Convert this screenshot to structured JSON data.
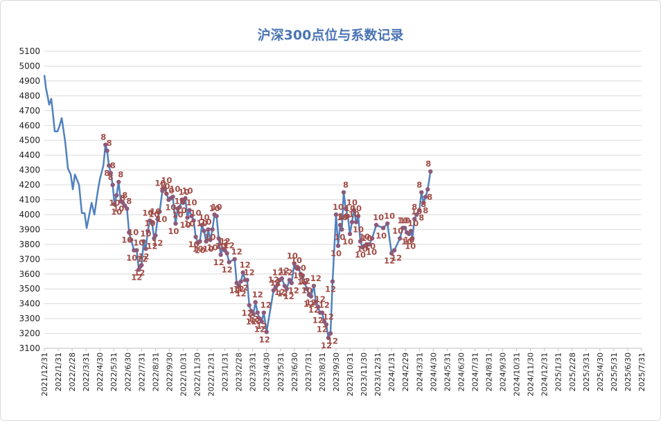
{
  "chart_data": {
    "type": "line",
    "title": "沪深300点位与系数记录",
    "xlabel": "",
    "ylabel": "",
    "ylim": [
      3100,
      5100
    ],
    "y_ticks": [
      3100,
      3200,
      3300,
      3400,
      3500,
      3600,
      3700,
      3800,
      3900,
      4000,
      4100,
      4200,
      4300,
      4400,
      4500,
      4600,
      4700,
      4800,
      4900,
      5000,
      5100
    ],
    "x_ticks": [
      "2021/12/31",
      "2022/1/31",
      "2022/2/28",
      "2022/3/31",
      "2022/4/30",
      "2022/5/31",
      "2022/6/30",
      "2022/7/31",
      "2022/8/31",
      "2022/9/30",
      "2022/10/31",
      "2022/11/30",
      "2022/12/31",
      "2023/1/31",
      "2023/2/28",
      "2023/3/31",
      "2023/4/30",
      "2023/5/31",
      "2023/6/30",
      "2023/7/31",
      "2023/8/31",
      "2023/9/30",
      "2023/10/31",
      "2023/11/30",
      "2023/12/31",
      "2024/1/31",
      "2024/2/29",
      "2024/3/31",
      "2024/4/30",
      "2024/5/31",
      "2024/6/30",
      "2024/7/31",
      "2024/8/31",
      "2024/9/30",
      "2024/10/31",
      "2024/11/30",
      "2024/12/31",
      "2025/1/31",
      "2025/2/28",
      "2025/3/31",
      "2025/4/30",
      "2025/5/31",
      "2025/6/30",
      "2025/7/31"
    ],
    "grid": true,
    "legend": "none",
    "colors": {
      "line": "#4f81bd",
      "marker": "#8c5b7b",
      "label": "#a14b45"
    },
    "series": [
      {
        "points": [
          {
            "x": 0.0,
            "y": 4940
          },
          {
            "x": 0.12,
            "y": 4850
          },
          {
            "x": 0.25,
            "y": 4790
          },
          {
            "x": 0.35,
            "y": 4740
          },
          {
            "x": 0.5,
            "y": 4780
          },
          {
            "x": 0.62,
            "y": 4680
          },
          {
            "x": 0.75,
            "y": 4560
          },
          {
            "x": 0.95,
            "y": 4560
          },
          {
            "x": 1.1,
            "y": 4600
          },
          {
            "x": 1.25,
            "y": 4650
          },
          {
            "x": 1.5,
            "y": 4490
          },
          {
            "x": 1.7,
            "y": 4310
          },
          {
            "x": 1.9,
            "y": 4270
          },
          {
            "x": 2.05,
            "y": 4170
          },
          {
            "x": 2.2,
            "y": 4270
          },
          {
            "x": 2.5,
            "y": 4200
          },
          {
            "x": 2.7,
            "y": 4010
          },
          {
            "x": 2.9,
            "y": 4010
          },
          {
            "x": 3.05,
            "y": 3910
          },
          {
            "x": 3.4,
            "y": 4080
          },
          {
            "x": 3.6,
            "y": 4000
          },
          {
            "x": 3.85,
            "y": 4160
          },
          {
            "x": 4.0,
            "y": 4240
          },
          {
            "x": 4.25,
            "y": 4330
          },
          {
            "x": 4.4,
            "y": 4470,
            "label": "8"
          },
          {
            "x": 4.52,
            "y": 4430,
            "label": "8"
          },
          {
            "x": 4.65,
            "y": 4330,
            "label": "8"
          },
          {
            "x": 4.78,
            "y": 4280,
            "label": "8"
          },
          {
            "x": 4.92,
            "y": 4200,
            "label": "8"
          },
          {
            "x": 5.05,
            "y": 4070,
            "label": "10"
          },
          {
            "x": 5.2,
            "y": 4130,
            "label": "10"
          },
          {
            "x": 5.35,
            "y": 4220,
            "label": "8"
          },
          {
            "x": 5.5,
            "y": 4090,
            "label": "10"
          },
          {
            "x": 5.65,
            "y": 4080,
            "label": "8"
          },
          {
            "x": 5.8,
            "y": 4060,
            "label": "8"
          },
          {
            "x": 5.95,
            "y": 4040,
            "label": "8"
          },
          {
            "x": 6.1,
            "y": 3880,
            "label": "10"
          },
          {
            "x": 6.25,
            "y": 3830,
            "label": "10"
          },
          {
            "x": 6.45,
            "y": 3760,
            "label": "10"
          },
          {
            "x": 6.65,
            "y": 3760,
            "label": "10"
          },
          {
            "x": 6.8,
            "y": 3630,
            "label": "12"
          },
          {
            "x": 6.9,
            "y": 3650,
            "label": "12"
          },
          {
            "x": 7.0,
            "y": 3660,
            "label": "12"
          },
          {
            "x": 7.15,
            "y": 3820,
            "label": "10"
          },
          {
            "x": 7.3,
            "y": 3770,
            "label": "12"
          },
          {
            "x": 7.45,
            "y": 3890,
            "label": "10"
          },
          {
            "x": 7.6,
            "y": 3960,
            "label": "10"
          },
          {
            "x": 7.75,
            "y": 3950,
            "label": "10"
          },
          {
            "x": 7.9,
            "y": 3840,
            "label": "12"
          },
          {
            "x": 8.0,
            "y": 3860,
            "label": "12"
          },
          {
            "x": 8.15,
            "y": 3970,
            "label": "10"
          },
          {
            "x": 8.3,
            "y": 4020,
            "label": "10"
          },
          {
            "x": 8.5,
            "y": 4160,
            "label": "10"
          },
          {
            "x": 8.65,
            "y": 4180,
            "label": "10"
          },
          {
            "x": 8.8,
            "y": 4140,
            "label": "10"
          },
          {
            "x": 8.95,
            "y": 4100,
            "label": "10"
          },
          {
            "x": 9.1,
            "y": 4110,
            "label": "10"
          },
          {
            "x": 9.25,
            "y": 4120,
            "label": "10"
          },
          {
            "x": 9.45,
            "y": 3940,
            "label": "10"
          },
          {
            "x": 9.6,
            "y": 4040,
            "label": "10"
          },
          {
            "x": 9.75,
            "y": 4050,
            "label": "10"
          },
          {
            "x": 9.9,
            "y": 4100,
            "label": "10"
          },
          {
            "x": 10.0,
            "y": 4080,
            "label": "10"
          },
          {
            "x": 10.15,
            "y": 4110,
            "label": "10"
          },
          {
            "x": 10.3,
            "y": 3980,
            "label": "10"
          },
          {
            "x": 10.45,
            "y": 4030,
            "label": "10"
          },
          {
            "x": 10.6,
            "y": 3990,
            "label": "10"
          },
          {
            "x": 10.75,
            "y": 3960,
            "label": "10"
          },
          {
            "x": 10.9,
            "y": 3850,
            "label": "10"
          },
          {
            "x": 11.05,
            "y": 3810,
            "label": "10"
          },
          {
            "x": 11.2,
            "y": 3820,
            "label": "10"
          },
          {
            "x": 11.35,
            "y": 3930,
            "label": "10"
          },
          {
            "x": 11.5,
            "y": 3890,
            "label": "10"
          },
          {
            "x": 11.65,
            "y": 3820,
            "label": "10"
          },
          {
            "x": 11.8,
            "y": 3900,
            "label": "10"
          },
          {
            "x": 11.95,
            "y": 3830,
            "label": "10"
          },
          {
            "x": 12.1,
            "y": 3900,
            "label": "10"
          },
          {
            "x": 12.25,
            "y": 4000,
            "label": "10"
          },
          {
            "x": 12.4,
            "y": 3990,
            "label": "10"
          },
          {
            "x": 12.55,
            "y": 3840,
            "label": "10"
          },
          {
            "x": 12.7,
            "y": 3730,
            "label": "12"
          },
          {
            "x": 12.85,
            "y": 3770,
            "label": "12"
          },
          {
            "x": 13.0,
            "y": 3760,
            "label": "12"
          },
          {
            "x": 13.15,
            "y": 3740,
            "label": "12"
          },
          {
            "x": 13.3,
            "y": 3680,
            "label": "12"
          },
          {
            "x": 13.7,
            "y": 3700,
            "label": "12"
          },
          {
            "x": 13.85,
            "y": 3540,
            "label": "12"
          },
          {
            "x": 14.0,
            "y": 3520,
            "label": "12"
          },
          {
            "x": 14.15,
            "y": 3550,
            "label": "12"
          },
          {
            "x": 14.3,
            "y": 3610,
            "label": "12"
          },
          {
            "x": 14.45,
            "y": 3560,
            "label": "12"
          },
          {
            "x": 14.6,
            "y": 3560,
            "label": "12"
          },
          {
            "x": 14.75,
            "y": 3390,
            "label": "12"
          },
          {
            "x": 14.9,
            "y": 3350,
            "label": "12"
          },
          {
            "x": 15.05,
            "y": 3330,
            "label": "12"
          },
          {
            "x": 15.2,
            "y": 3410,
            "label": "12"
          },
          {
            "x": 15.35,
            "y": 3340,
            "label": "12"
          },
          {
            "x": 15.5,
            "y": 3300,
            "label": "12"
          },
          {
            "x": 15.65,
            "y": 3280,
            "label": "12"
          },
          {
            "x": 15.8,
            "y": 3340,
            "label": "12"
          },
          {
            "x": 16.0,
            "y": 3210,
            "label": "12"
          },
          {
            "x": 16.5,
            "y": 3490,
            "label": "12"
          },
          {
            "x": 16.65,
            "y": 3510,
            "label": "12"
          },
          {
            "x": 16.8,
            "y": 3530,
            "label": "12"
          },
          {
            "x": 16.95,
            "y": 3560,
            "label": "12"
          },
          {
            "x": 17.1,
            "y": 3570,
            "label": "12"
          },
          {
            "x": 17.3,
            "y": 3520,
            "label": "12"
          },
          {
            "x": 17.45,
            "y": 3500,
            "label": "12"
          },
          {
            "x": 17.65,
            "y": 3560,
            "label": "12"
          },
          {
            "x": 17.8,
            "y": 3540,
            "label": "12"
          },
          {
            "x": 18.0,
            "y": 3670,
            "label": "10"
          },
          {
            "x": 18.15,
            "y": 3640,
            "label": "10"
          },
          {
            "x": 18.3,
            "y": 3640,
            "label": "10"
          },
          {
            "x": 18.45,
            "y": 3600,
            "label": "10"
          },
          {
            "x": 18.6,
            "y": 3590,
            "label": "10"
          },
          {
            "x": 18.75,
            "y": 3540,
            "label": "10"
          },
          {
            "x": 18.9,
            "y": 3500,
            "label": "12"
          },
          {
            "x": 19.05,
            "y": 3460,
            "label": "12"
          },
          {
            "x": 19.2,
            "y": 3450,
            "label": "12"
          },
          {
            "x": 19.4,
            "y": 3520,
            "label": "12"
          },
          {
            "x": 19.55,
            "y": 3410,
            "label": "12"
          },
          {
            "x": 19.7,
            "y": 3380,
            "label": "12"
          },
          {
            "x": 19.85,
            "y": 3340,
            "label": "12"
          },
          {
            "x": 20.0,
            "y": 3340,
            "label": "12"
          },
          {
            "x": 20.15,
            "y": 3280,
            "label": "12"
          },
          {
            "x": 20.3,
            "y": 3260,
            "label": "12"
          },
          {
            "x": 20.45,
            "y": 3170,
            "label": "12"
          },
          {
            "x": 20.6,
            "y": 3200,
            "label": "12"
          },
          {
            "x": 20.75,
            "y": 3550,
            "label": "12"
          },
          {
            "x": 21.0,
            "y": 4000,
            "label": "10"
          },
          {
            "x": 21.15,
            "y": 3790,
            "label": "10"
          },
          {
            "x": 21.3,
            "y": 3930,
            "label": "10"
          },
          {
            "x": 21.42,
            "y": 3900,
            "label": "10"
          },
          {
            "x": 21.55,
            "y": 4150,
            "label": "8"
          },
          {
            "x": 21.7,
            "y": 4040,
            "label": "10"
          },
          {
            "x": 21.85,
            "y": 3990,
            "label": "10"
          },
          {
            "x": 22.0,
            "y": 3870,
            "label": "10"
          },
          {
            "x": 22.15,
            "y": 3950,
            "label": "10"
          },
          {
            "x": 22.3,
            "y": 4030,
            "label": "10"
          },
          {
            "x": 22.45,
            "y": 3950,
            "label": "10"
          },
          {
            "x": 22.6,
            "y": 3990,
            "label": "10"
          },
          {
            "x": 22.75,
            "y": 3820,
            "label": "10"
          },
          {
            "x": 22.9,
            "y": 3780,
            "label": "10"
          },
          {
            "x": 23.05,
            "y": 3790,
            "label": "10"
          },
          {
            "x": 23.2,
            "y": 3800,
            "label": "10"
          },
          {
            "x": 23.4,
            "y": 3800,
            "label": "10"
          },
          {
            "x": 23.6,
            "y": 3840,
            "label": "10"
          },
          {
            "x": 23.9,
            "y": 3930,
            "label": "10"
          },
          {
            "x": 24.4,
            "y": 3910,
            "label": "10"
          },
          {
            "x": 24.7,
            "y": 3940,
            "label": "10"
          },
          {
            "x": 25.0,
            "y": 3740,
            "label": "12"
          },
          {
            "x": 25.2,
            "y": 3760,
            "label": "12"
          },
          {
            "x": 25.6,
            "y": 3840,
            "label": "10"
          },
          {
            "x": 25.8,
            "y": 3910,
            "label": "10"
          },
          {
            "x": 25.95,
            "y": 3910,
            "label": "10"
          },
          {
            "x": 26.1,
            "y": 3880,
            "label": "10"
          },
          {
            "x": 26.25,
            "y": 3870,
            "label": "10"
          },
          {
            "x": 26.4,
            "y": 3890,
            "label": "10"
          },
          {
            "x": 26.5,
            "y": 3840,
            "label": "10"
          },
          {
            "x": 26.65,
            "y": 3970,
            "label": "10"
          },
          {
            "x": 26.8,
            "y": 4000,
            "label": "8"
          },
          {
            "x": 27.0,
            "y": 4030,
            "label": "8"
          },
          {
            "x": 27.15,
            "y": 4150,
            "label": "8"
          },
          {
            "x": 27.3,
            "y": 4080,
            "label": "8"
          },
          {
            "x": 27.45,
            "y": 4120,
            "label": "8"
          },
          {
            "x": 27.6,
            "y": 4170,
            "label": "8"
          },
          {
            "x": 27.8,
            "y": 4290,
            "label": "8"
          }
        ]
      }
    ]
  }
}
